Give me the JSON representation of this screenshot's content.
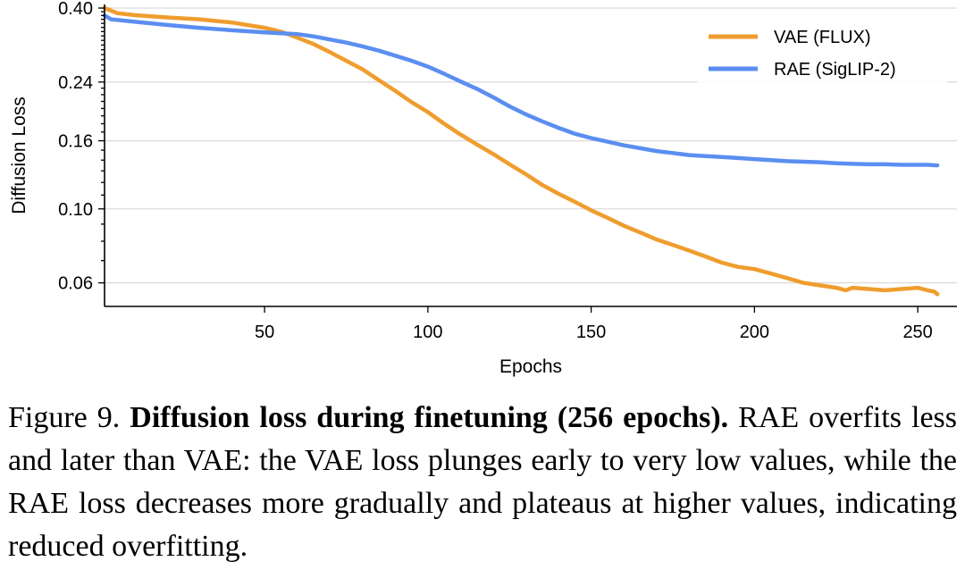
{
  "chart_data": {
    "type": "line",
    "xlabel": "Epochs",
    "ylabel": "Diffusion Loss",
    "yscale": "log",
    "xlim": [
      1,
      262
    ],
    "ylim": [
      0.051,
      0.41
    ],
    "xticks": [
      50,
      100,
      150,
      200,
      250
    ],
    "yticks": [
      0.06,
      0.1,
      0.16,
      0.24,
      0.4
    ],
    "ytick_labels": [
      "0.06",
      "0.10",
      "0.16",
      "0.24",
      "0.40"
    ],
    "grid": "horizontal",
    "legend_position": "top-right",
    "series": [
      {
        "name": "VAE (FLUX)",
        "color": "#ef9d2e",
        "x": [
          1,
          5,
          10,
          20,
          30,
          40,
          50,
          55,
          60,
          65,
          70,
          75,
          80,
          85,
          90,
          95,
          100,
          105,
          110,
          115,
          120,
          125,
          130,
          135,
          140,
          145,
          150,
          155,
          160,
          165,
          170,
          175,
          180,
          185,
          190,
          195,
          200,
          205,
          210,
          215,
          220,
          225,
          228,
          230,
          235,
          240,
          245,
          250,
          253,
          255,
          256
        ],
        "y": [
          0.4,
          0.386,
          0.381,
          0.375,
          0.37,
          0.362,
          0.349,
          0.34,
          0.326,
          0.312,
          0.295,
          0.278,
          0.262,
          0.243,
          0.226,
          0.209,
          0.195,
          0.18,
          0.167,
          0.156,
          0.146,
          0.136,
          0.127,
          0.118,
          0.111,
          0.105,
          0.099,
          0.094,
          0.089,
          0.085,
          0.081,
          0.078,
          0.075,
          0.072,
          0.069,
          0.067,
          0.066,
          0.064,
          0.062,
          0.06,
          0.059,
          0.058,
          0.057,
          0.058,
          0.0575,
          0.057,
          0.0575,
          0.058,
          0.057,
          0.0565,
          0.0555
        ]
      },
      {
        "name": "RAE (SigLIP-2)",
        "color": "#5b8ef0",
        "x": [
          1,
          3,
          10,
          20,
          30,
          40,
          50,
          55,
          60,
          65,
          70,
          75,
          80,
          85,
          90,
          95,
          100,
          105,
          110,
          115,
          120,
          125,
          130,
          135,
          140,
          145,
          150,
          155,
          160,
          165,
          170,
          175,
          180,
          185,
          190,
          195,
          200,
          205,
          210,
          215,
          220,
          225,
          230,
          235,
          240,
          245,
          250,
          253,
          256
        ],
        "y": [
          0.38,
          0.37,
          0.364,
          0.356,
          0.349,
          0.343,
          0.338,
          0.336,
          0.334,
          0.329,
          0.322,
          0.315,
          0.307,
          0.298,
          0.288,
          0.278,
          0.267,
          0.254,
          0.241,
          0.229,
          0.216,
          0.203,
          0.192,
          0.183,
          0.175,
          0.168,
          0.163,
          0.159,
          0.155,
          0.152,
          0.149,
          0.147,
          0.145,
          0.144,
          0.143,
          0.142,
          0.141,
          0.14,
          0.139,
          0.1385,
          0.138,
          0.137,
          0.1365,
          0.136,
          0.136,
          0.1355,
          0.1355,
          0.1355,
          0.135
        ]
      }
    ]
  },
  "caption": {
    "label": "Figure 9.",
    "title": "Diffusion loss during finetuning (256 epochs).",
    "body": "RAE overfits less and later than VAE: the VAE loss plunges early to very low values, while the RAE loss decreases more gradually and plateaus at higher values, indicating reduced overfitting."
  }
}
